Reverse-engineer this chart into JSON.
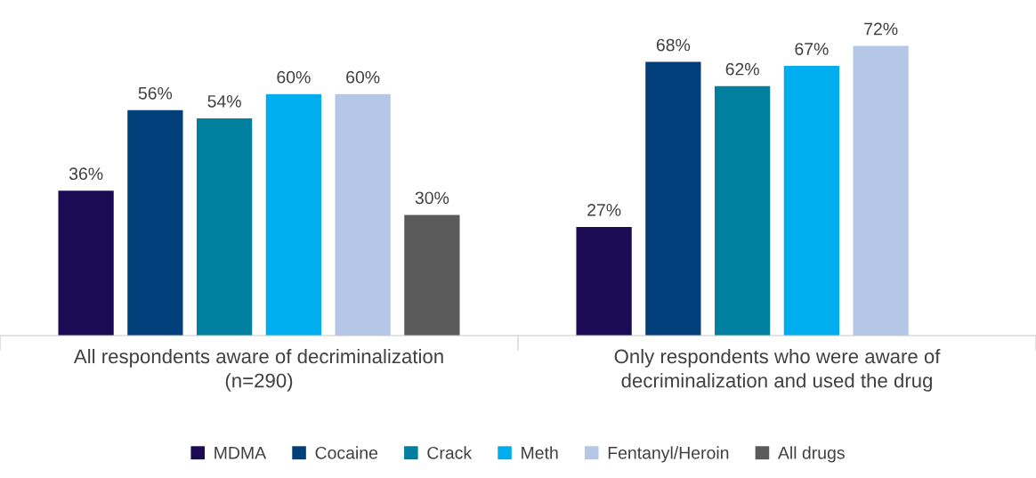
{
  "chart_data": {
    "type": "bar",
    "categories": [
      "All respondents aware of decriminalization\n(n=290)",
      "Only respondents who were aware of\ndecriminalization and used the drug"
    ],
    "series": [
      {
        "name": "MDMA",
        "color": "#1b0a54",
        "values": [
          36,
          27
        ],
        "value_labels": [
          "36%",
          "27%"
        ]
      },
      {
        "name": "Cocaine",
        "color": "#003f7a",
        "values": [
          56,
          68
        ],
        "value_labels": [
          "56%",
          "68%"
        ]
      },
      {
        "name": "Crack",
        "color": "#00809e",
        "values": [
          54,
          62
        ],
        "value_labels": [
          "54%",
          "62%"
        ]
      },
      {
        "name": "Meth",
        "color": "#00aeef",
        "values": [
          60,
          67
        ],
        "value_labels": [
          "60%",
          "67%"
        ]
      },
      {
        "name": "Fentanyl/Heroin",
        "color": "#b4c7e7",
        "values": [
          60,
          72
        ],
        "value_labels": [
          "60%",
          "72%"
        ]
      },
      {
        "name": "All drugs",
        "color": "#5a5a5a",
        "values": [
          30,
          null
        ],
        "value_labels": [
          "30%",
          null
        ]
      }
    ],
    "legend": "bottom",
    "grid": false
  }
}
